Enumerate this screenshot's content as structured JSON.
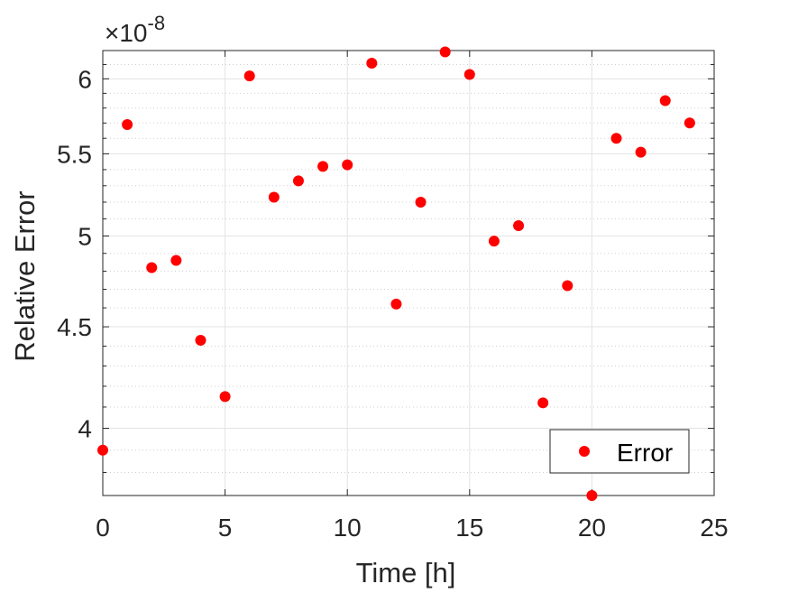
{
  "chart_data": {
    "type": "scatter",
    "xlabel": "Time [h]",
    "ylabel": "Relative Error",
    "y_exponent": {
      "base": "×10",
      "power": "-8"
    },
    "xlim": [
      0,
      25
    ],
    "ylim": [
      3.7,
      6.2
    ],
    "y_scale": "log",
    "x_ticks": [
      0,
      5,
      10,
      15,
      20,
      25
    ],
    "x_tick_labels": [
      "0",
      "5",
      "10",
      "15",
      "20",
      "25"
    ],
    "y_ticks": [
      4,
      4.5,
      5,
      5.5,
      6
    ],
    "y_tick_labels": [
      "4",
      "4.5",
      "5",
      "5.5",
      "6"
    ],
    "y_minor_ticks": [
      3.8,
      3.9,
      4.1,
      4.2,
      4.3,
      4.4,
      4.6,
      4.7,
      4.8,
      4.9,
      5.1,
      5.2,
      5.3,
      5.4,
      5.6,
      5.7,
      5.8,
      5.9,
      6.1
    ],
    "grid": true,
    "minor_grid": true,
    "legend_position": "bottom-right",
    "marker_color": "#ff0000",
    "series": [
      {
        "name": "Error",
        "x": [
          0,
          1,
          2,
          3,
          4,
          5,
          6,
          7,
          8,
          9,
          10,
          11,
          12,
          13,
          14,
          15,
          16,
          17,
          18,
          19,
          20,
          21,
          22,
          23,
          24
        ],
        "y": [
          3.9,
          5.69,
          4.82,
          4.86,
          4.43,
          4.15,
          6.02,
          5.23,
          5.33,
          5.42,
          5.43,
          6.11,
          4.62,
          5.2,
          6.19,
          6.03,
          4.97,
          5.06,
          4.12,
          4.72,
          3.7,
          5.6,
          5.51,
          5.85,
          5.7
        ]
      }
    ]
  }
}
